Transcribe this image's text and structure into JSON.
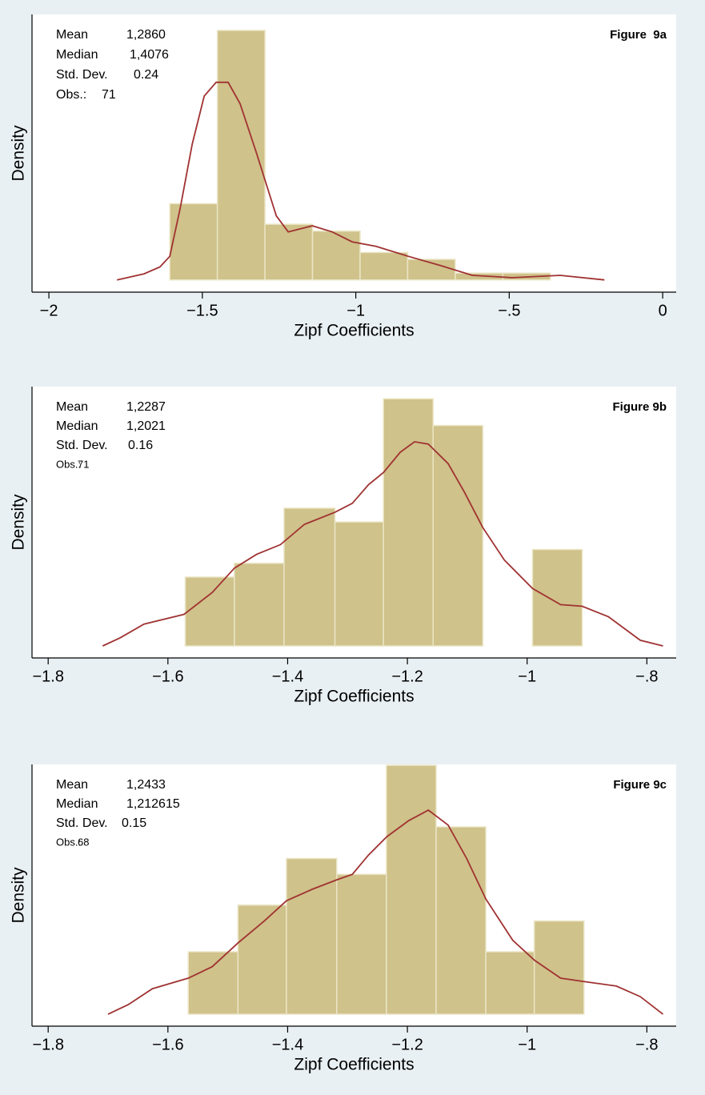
{
  "chart_data": [
    {
      "type": "histogram",
      "title": "Figure  9a",
      "stats": [
        {
          "label": "Mean",
          "value": "1,2860"
        },
        {
          "label": "Median",
          "value": "1,4076"
        },
        {
          "label": "Std. Dev.",
          "value": "0.24"
        },
        {
          "label": "Obs.:",
          "value": "71"
        }
      ],
      "xlabel": "Zipf Coefficients",
      "ylabel": "Density",
      "bins": [
        -1.606,
        -1.451,
        -1.296,
        -1.141,
        -0.986,
        -0.831,
        -0.676,
        -0.521,
        -0.366
      ],
      "values": [
        1.0,
        3.27,
        0.73,
        0.64,
        0.36,
        0.27,
        0.09,
        0.09
      ],
      "color": "#cfc28a",
      "curve": {
        "color": "#a03232",
        "x": [
          -1.778,
          -1.69,
          -1.638,
          -1.606,
          -1.572,
          -1.533,
          -1.494,
          -1.455,
          -1.416,
          -1.377,
          -1.325,
          -1.259,
          -1.22,
          -1.142,
          -1.077,
          -1.012,
          -0.934,
          -0.829,
          -0.725,
          -0.62,
          -0.49,
          -0.334,
          -0.19
        ],
        "y": [
          0,
          0.08,
          0.17,
          0.31,
          0.94,
          1.78,
          2.41,
          2.59,
          2.59,
          2.31,
          1.68,
          0.84,
          0.63,
          0.71,
          0.63,
          0.5,
          0.44,
          0.31,
          0.19,
          0.06,
          0.03,
          0.06,
          0
        ]
      },
      "xlim": [
        -2.055,
        0.044
      ],
      "ylim": [
        -0.16,
        3.48
      ],
      "xticks": [
        {
          "value": -2,
          "label": "−2"
        },
        {
          "value": -1.5,
          "label": "−1.5"
        },
        {
          "value": -1,
          "label": "−1"
        },
        {
          "value": -0.5,
          "label": "−.5"
        },
        0
      ]
    },
    {
      "type": "histogram",
      "title": "Figure 9b",
      "stats": [
        {
          "label": "Mean",
          "value": "1,2287"
        },
        {
          "label": "Median",
          "value": "1,2021"
        },
        {
          "label": "Std. Dev.",
          "value": "0.16"
        },
        {
          "label": "Obs.:",
          "value": "71"
        }
      ],
      "xlabel": "Zipf Coefficients",
      "ylabel": "Density",
      "bins": [
        -1.571,
        -1.489,
        -1.406,
        -1.321,
        -1.24,
        -1.157,
        -1.074,
        -0.991,
        -0.908
      ],
      "values": [
        0.85,
        1.02,
        1.7,
        1.53,
        3.05,
        2.72,
        0,
        1.19
      ],
      "color": "#cfc28a",
      "curve": {
        "color": "#a03232",
        "x": [
          -1.709,
          -1.68,
          -1.64,
          -1.573,
          -1.526,
          -1.489,
          -1.452,
          -1.412,
          -1.372,
          -1.321,
          -1.292,
          -1.265,
          -1.24,
          -1.212,
          -1.188,
          -1.165,
          -1.132,
          -1.105,
          -1.074,
          -1.038,
          -0.991,
          -0.944,
          -0.908,
          -0.864,
          -0.811,
          -0.773
        ],
        "y": [
          0,
          0.1,
          0.27,
          0.39,
          0.66,
          0.96,
          1.13,
          1.25,
          1.5,
          1.65,
          1.76,
          1.99,
          2.14,
          2.39,
          2.52,
          2.49,
          2.25,
          1.9,
          1.46,
          1.06,
          0.71,
          0.51,
          0.49,
          0.36,
          0.07,
          0
        ]
      },
      "xlim": [
        -1.827,
        -0.751
      ],
      "ylim": [
        -0.148,
        3.2
      ],
      "xticks": [
        {
          "value": -1.8,
          "label": "−1.8"
        },
        {
          "value": -1.6,
          "label": "−1.6"
        },
        {
          "value": -1.4,
          "label": "−1.4"
        },
        {
          "value": -1.2,
          "label": "−1.2"
        },
        {
          "value": -1,
          "label": "−1"
        },
        {
          "value": -0.8,
          "label": "−.8"
        }
      ]
    },
    {
      "type": "histogram",
      "title": "Figure 9c",
      "stats": [
        {
          "label": "Mean",
          "value": "1,2433"
        },
        {
          "label": "Median",
          "value": "1,212615"
        },
        {
          "label": "Std. Dev.",
          "value": "0.15"
        },
        {
          "label": "Obs.:",
          "value": "68"
        }
      ],
      "xlabel": "Zipf Coefficients",
      "ylabel": "Density",
      "bins": [
        -1.566,
        -1.483,
        -1.402,
        -1.318,
        -1.235,
        -1.152,
        -1.069,
        -0.988,
        -0.905
      ],
      "values": [
        0.71,
        1.24,
        1.77,
        1.59,
        2.83,
        2.13,
        0.71,
        1.06
      ],
      "color": "#cfc28a",
      "curve": {
        "color": "#a03232",
        "x": [
          -1.7,
          -1.666,
          -1.626,
          -1.566,
          -1.526,
          -1.483,
          -1.439,
          -1.402,
          -1.359,
          -1.317,
          -1.292,
          -1.265,
          -1.234,
          -1.198,
          -1.165,
          -1.132,
          -1.101,
          -1.069,
          -1.024,
          -0.987,
          -0.944,
          -0.904,
          -0.851,
          -0.811,
          -0.773
        ],
        "y": [
          0,
          0.11,
          0.29,
          0.41,
          0.54,
          0.81,
          1.06,
          1.29,
          1.42,
          1.53,
          1.59,
          1.81,
          2.02,
          2.2,
          2.32,
          2.15,
          1.77,
          1.31,
          0.84,
          0.61,
          0.41,
          0.37,
          0.32,
          0.2,
          0
        ]
      },
      "xlim": [
        -1.827,
        -0.751
      ],
      "ylim": [
        -0.136,
        2.84
      ],
      "xticks": [
        {
          "value": -1.8,
          "label": "−1.8"
        },
        {
          "value": -1.6,
          "label": "−1.6"
        },
        {
          "value": -1.4,
          "label": "−1.4"
        },
        {
          "value": -1.2,
          "label": "−1.2"
        },
        {
          "value": -1,
          "label": "−1"
        },
        {
          "value": -0.8,
          "label": "−.8"
        }
      ]
    }
  ]
}
